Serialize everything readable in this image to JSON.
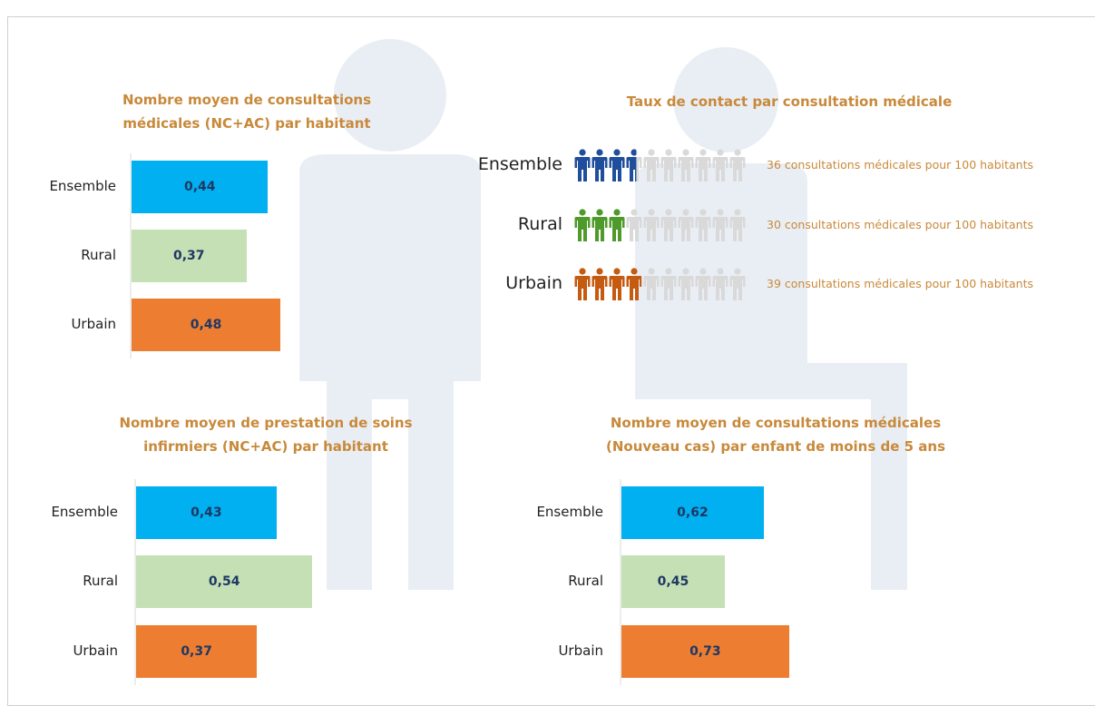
{
  "chart_data": [
    {
      "type": "bar",
      "title": "Nombre moyen de consultations médicales (NC+AC) par habitant",
      "categories": [
        "Ensemble",
        "Rural",
        "Urbain"
      ],
      "values": [
        0.44,
        0.37,
        0.48
      ],
      "value_labels": [
        "0,44",
        "0,37",
        "0,48"
      ],
      "colors": [
        "#00b0f0",
        "#c5e0b4",
        "#ed7d31"
      ]
    },
    {
      "type": "pictogram",
      "title": "Taux de contact par consultation médicale",
      "categories": [
        "Ensemble",
        "Rural",
        "Urbain"
      ],
      "values": [
        36,
        30,
        39
      ],
      "value_labels": [
        "36 consultations médicales pour 100 habitants",
        "30 consultations médicales pour 100 habitants",
        "39 consultations médicales pour 100 habitants"
      ],
      "colors": [
        "#1f4e9c",
        "#4e9a2a",
        "#c55a11"
      ]
    },
    {
      "type": "bar",
      "title": "Nombre moyen de prestation de soins infirmiers (NC+AC) par habitant",
      "categories": [
        "Ensemble",
        "Rural",
        "Urbain"
      ],
      "values": [
        0.43,
        0.54,
        0.37
      ],
      "value_labels": [
        "0,43",
        "0,54",
        "0,37"
      ],
      "colors": [
        "#00b0f0",
        "#c5e0b4",
        "#ed7d31"
      ]
    },
    {
      "type": "bar",
      "title": "Nombre moyen de consultations médicales (Nouveau cas) par enfant de moins de 5 ans",
      "categories": [
        "Ensemble",
        "Rural",
        "Urbain"
      ],
      "values": [
        0.62,
        0.45,
        0.73
      ],
      "value_labels": [
        "0,62",
        "0,45",
        "0,73"
      ],
      "colors": [
        "#00b0f0",
        "#c5e0b4",
        "#ed7d31"
      ]
    }
  ]
}
